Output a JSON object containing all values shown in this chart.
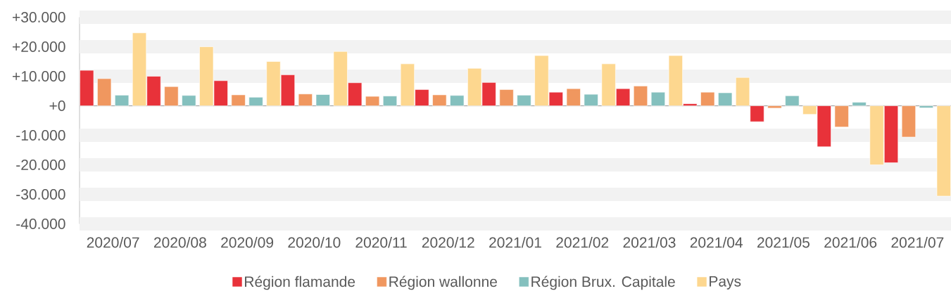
{
  "chart_data": {
    "type": "bar",
    "categories": [
      "2020/07",
      "2020/08",
      "2020/09",
      "2020/10",
      "2020/11",
      "2020/12",
      "2021/01",
      "2021/02",
      "2021/03",
      "2021/04",
      "2021/05",
      "2021/06",
      "2021/07"
    ],
    "series": [
      {
        "name": "Région flamande",
        "color": "#e8323a",
        "values": [
          12000,
          10000,
          8500,
          10500,
          7800,
          5500,
          7900,
          4600,
          5800,
          700,
          -5400,
          -13900,
          -19300
        ]
      },
      {
        "name": "Région wallonne",
        "color": "#f0975f",
        "values": [
          9200,
          6500,
          3700,
          4000,
          3200,
          3700,
          5500,
          5800,
          6700,
          4600,
          -800,
          -7200,
          -10600
        ]
      },
      {
        "name": "Région Brux. Capitale",
        "color": "#84c0be",
        "values": [
          3600,
          3500,
          2900,
          3800,
          3300,
          3500,
          3600,
          3900,
          4600,
          4400,
          3400,
          1200,
          -700
        ]
      },
      {
        "name": "Pays",
        "color": "#fdd78f",
        "values": [
          24700,
          20000,
          15000,
          18400,
          14200,
          12700,
          17000,
          14200,
          17000,
          9600,
          -2900,
          -20000,
          -30600
        ]
      }
    ],
    "ylim": [
      -40000,
      30000
    ],
    "yticks": [
      {
        "value": -40000,
        "label": "-40.000"
      },
      {
        "value": -30000,
        "label": "-30.000"
      },
      {
        "value": -20000,
        "label": "-20.000"
      },
      {
        "value": -10000,
        "label": "-10.000"
      },
      {
        "value": 0,
        "label": "+0"
      },
      {
        "value": 10000,
        "label": "+10.000"
      },
      {
        "value": 20000,
        "label": "+20.000"
      },
      {
        "value": 30000,
        "label": "+30.000"
      }
    ],
    "grid": "y",
    "legend": "bottom"
  }
}
